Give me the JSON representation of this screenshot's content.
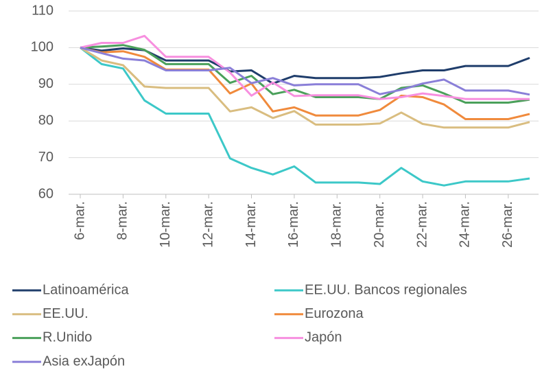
{
  "chart_data": {
    "type": "line",
    "categories": [
      "6-mar.",
      null,
      "8-mar.",
      null,
      "10-mar.",
      null,
      "12-mar.",
      null,
      "14-mar.",
      null,
      "16-mar.",
      null,
      "18-mar.",
      null,
      "20-mar.",
      null,
      "22-mar.",
      null,
      "24-mar.",
      null,
      "26-mar.",
      null
    ],
    "series": [
      {
        "name": "Latinoamérica",
        "color": "#1f3d6b",
        "values": [
          100,
          99.2,
          99.8,
          99.3,
          96.5,
          96.5,
          96.5,
          93.5,
          93.8,
          90.2,
          92.3,
          91.7,
          91.7,
          91.7,
          92,
          93,
          93.8,
          93.8,
          95,
          95,
          95,
          97.2
        ]
      },
      {
        "name": "EE.UU. Bancos regionales",
        "color": "#3cc8c8",
        "values": [
          100,
          95.5,
          94.3,
          85.6,
          82,
          82,
          82,
          69.8,
          67.2,
          65.4,
          67.6,
          63.2,
          63.2,
          63.2,
          62.8,
          67.2,
          63.5,
          62.4,
          63.5,
          63.5,
          63.5,
          64.3
        ]
      },
      {
        "name": "EE.UU.",
        "color": "#d9bd80",
        "values": [
          100,
          96.5,
          95.2,
          89.4,
          89,
          89,
          89,
          82.6,
          83.7,
          80.8,
          82.7,
          79,
          79,
          79,
          79.3,
          82.3,
          79.2,
          78.2,
          78.2,
          78.2,
          78.2,
          79.7
        ]
      },
      {
        "name": "Eurozona",
        "color": "#f08a3c",
        "values": [
          100,
          98.7,
          99,
          97.5,
          94,
          94,
          94,
          87.5,
          90.2,
          82.6,
          83.7,
          81.5,
          81.5,
          81.5,
          83,
          86.9,
          86.5,
          84.5,
          80.5,
          80.5,
          80.5,
          81.9
        ]
      },
      {
        "name": "R.Unido",
        "color": "#4aa05a",
        "values": [
          100,
          100.3,
          100.7,
          99.4,
          95.5,
          95.5,
          95.5,
          90.4,
          92.3,
          87.3,
          88.5,
          86.5,
          86.5,
          86.5,
          86,
          89,
          89.7,
          87.5,
          85,
          85,
          85,
          85.8
        ]
      },
      {
        "name": "Japón",
        "color": "#f78fdf",
        "values": [
          100,
          101.3,
          101.3,
          103.2,
          97.5,
          97.5,
          97.5,
          93.2,
          86.9,
          90.5,
          86.8,
          87,
          87,
          87,
          86,
          86.5,
          87.5,
          86.8,
          86,
          86,
          86,
          86
        ]
      },
      {
        "name": "Asia exJapón",
        "color": "#8a7fd8",
        "values": [
          100,
          98.5,
          97,
          96.5,
          93.8,
          93.8,
          93.8,
          94.5,
          90.3,
          91.7,
          89.7,
          90,
          90,
          90,
          87.3,
          88.5,
          90.2,
          91.3,
          88.3,
          88.3,
          88.3,
          87.2
        ]
      }
    ],
    "ylim": [
      60,
      110
    ],
    "yticks": [
      60,
      70,
      80,
      90,
      100,
      110
    ],
    "grid": true
  }
}
